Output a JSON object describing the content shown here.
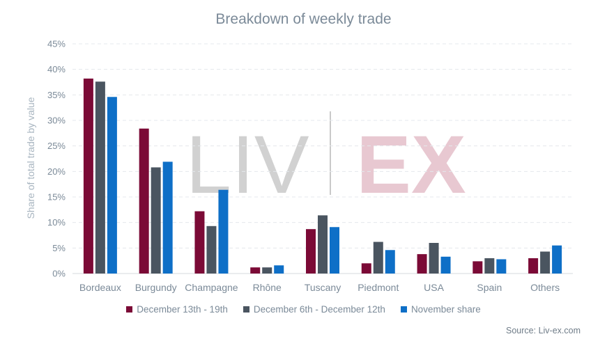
{
  "chart_data": {
    "type": "bar",
    "title": "Breakdown of weekly trade",
    "ylabel": "Share of total trade by value",
    "xlabel": "",
    "ylim": [
      0,
      45
    ],
    "yticks": [
      "0%",
      "5%",
      "10%",
      "15%",
      "20%",
      "25%",
      "30%",
      "35%",
      "40%",
      "45%"
    ],
    "grid": true,
    "legend_position": "bottom",
    "categories": [
      "Bordeaux",
      "Burgundy",
      "Champagne",
      "Rhône",
      "Tuscany",
      "Piedmont",
      "USA",
      "Spain",
      "Others"
    ],
    "series": [
      {
        "name": "December 13th - 19th",
        "color": "#7b0a36",
        "values": [
          38.2,
          28.4,
          12.2,
          1.2,
          8.7,
          2.0,
          3.8,
          2.4,
          3.0
        ]
      },
      {
        "name": "December 6th - December 12th",
        "color": "#4a5560",
        "values": [
          37.6,
          20.8,
          9.3,
          1.2,
          11.4,
          6.2,
          6.0,
          3.0,
          4.3
        ]
      },
      {
        "name": "November share",
        "color": "#0e6fc7",
        "values": [
          34.6,
          21.9,
          16.4,
          1.6,
          9.1,
          4.6,
          3.3,
          2.8,
          5.5
        ]
      }
    ]
  },
  "watermark": {
    "left": "LIV",
    "right": "EX"
  },
  "source": "Source: Liv-ex.com"
}
